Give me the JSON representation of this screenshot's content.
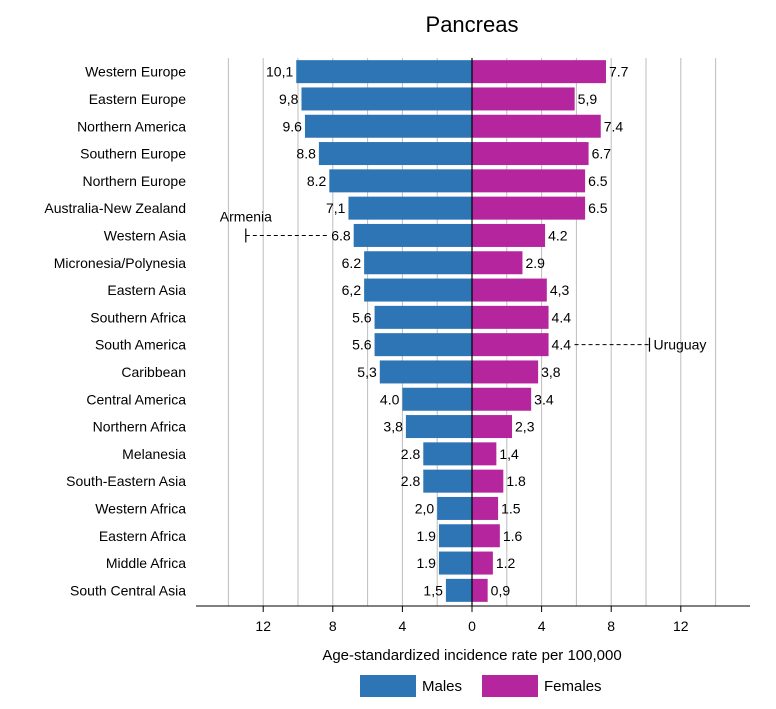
{
  "chart_data": {
    "type": "bar",
    "orientation": "horizontal-butterfly",
    "title": "Pancreas",
    "xlabel": "Age-standardized incidence rate per 100,000",
    "x_ticks": [
      "12",
      "8",
      "4",
      "0",
      "4",
      "8",
      "12"
    ],
    "xlim": [
      -16,
      16
    ],
    "grid": true,
    "categories": [
      "Western Europe",
      "Eastern Europe",
      "Northern America",
      "Southern Europe",
      "Northern Europe",
      "Australia-New Zealand",
      "Western Asia",
      "Micronesia/Polynesia",
      "Eastern Asia",
      "Southern Africa",
      "South America",
      "Caribbean",
      "Central America",
      "Northern Africa",
      "Melanesia",
      "South-Eastern Asia",
      "Western Africa",
      "Eastern Africa",
      "Middle Africa",
      "South Central Asia"
    ],
    "series": [
      {
        "name": "Males",
        "color": "#2e75b6",
        "values": [
          10.1,
          9.8,
          9.6,
          8.8,
          8.2,
          7.1,
          6.8,
          6.2,
          6.2,
          5.6,
          5.6,
          5.3,
          4.0,
          3.8,
          2.8,
          2.8,
          2.0,
          1.9,
          1.9,
          1.5
        ],
        "labels": [
          "10,1",
          "9,8",
          "9.6",
          "8.8",
          "8.2",
          "7,1",
          "6.8",
          "6.2",
          "6,2",
          "5.6",
          "5.6",
          "5,3",
          "4.0",
          "3,8",
          "2.8",
          "2.8",
          "2,0",
          "1.9",
          "1.9",
          "1,5"
        ]
      },
      {
        "name": "Females",
        "color": "#b5269e",
        "values": [
          7.7,
          5.9,
          7.4,
          6.7,
          6.5,
          6.5,
          4.2,
          2.9,
          4.3,
          4.4,
          4.4,
          3.8,
          3.4,
          2.3,
          1.4,
          1.8,
          1.5,
          1.6,
          1.2,
          0.9
        ],
        "labels": [
          "7.7",
          "5,9",
          "7.4",
          "6.7",
          "6.5",
          "6.5",
          "4.2",
          "2.9",
          "4,3",
          "4.4",
          "4.4",
          "3,8",
          "3.4",
          "2,3",
          "1,4",
          "1.8",
          "1.5",
          "1.6",
          "1.2",
          "0,9"
        ]
      }
    ],
    "annotations": [
      {
        "text": "Armenia",
        "side": "Males",
        "category": "Western Asia",
        "value": 13
      },
      {
        "text": "Uruguay",
        "side": "Females",
        "category": "South America",
        "value": 10.2
      }
    ],
    "legend_position": "bottom"
  }
}
